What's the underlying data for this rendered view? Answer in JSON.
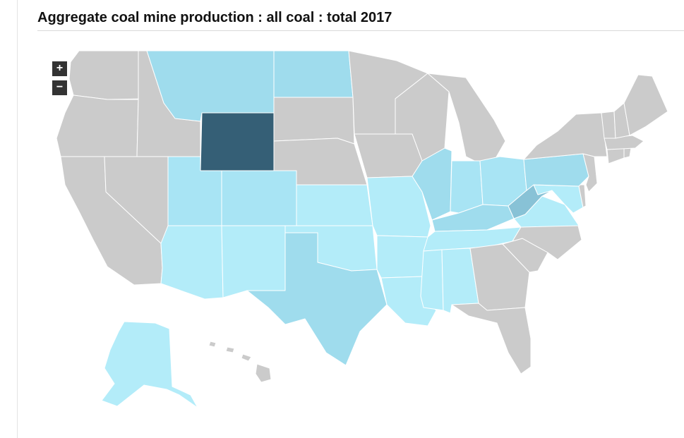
{
  "title": "Aggregate coal mine production : all coal : total 2017",
  "zoom": {
    "in_label": "+",
    "out_label": "−"
  },
  "colors": {
    "no_production": "#cbcbcb",
    "level_1": "#b3ecf9",
    "level_2": "#a8e4f4",
    "level_3": "#9fdced",
    "level_4": "#88c2d6",
    "level_5": "#355f76",
    "border": "#ffffff"
  },
  "map": {
    "type": "choropleth",
    "region": "United States",
    "legend": "none",
    "states": {
      "WY": "level_5",
      "WV": "level_4",
      "MT": "level_3",
      "ND": "level_3",
      "TX": "level_3",
      "IL": "level_3",
      "KY": "level_3",
      "PA": "level_3",
      "CO": "level_2",
      "UT": "level_2",
      "IN": "level_2",
      "OH": "level_2",
      "NM": "level_1",
      "AZ": "level_1",
      "AK": "level_1",
      "OK": "level_1",
      "MO": "level_1",
      "AR": "level_1",
      "LA": "level_1",
      "MS": "level_1",
      "AL": "level_1",
      "TN": "level_1",
      "VA": "level_1",
      "MD": "level_1",
      "KS": "level_1",
      "WA": "no_production",
      "OR": "no_production",
      "CA": "no_production",
      "NV": "no_production",
      "ID": "no_production",
      "SD": "no_production",
      "NE": "no_production",
      "MN": "no_production",
      "IA": "no_production",
      "WI": "no_production",
      "MI": "no_production",
      "GA": "no_production",
      "FL": "no_production",
      "SC": "no_production",
      "NC": "no_production",
      "NY": "no_production",
      "NJ": "no_production",
      "DE": "no_production",
      "CT": "no_production",
      "RI": "no_production",
      "MA": "no_production",
      "VT": "no_production",
      "NH": "no_production",
      "ME": "no_production",
      "HI": "no_production"
    }
  }
}
